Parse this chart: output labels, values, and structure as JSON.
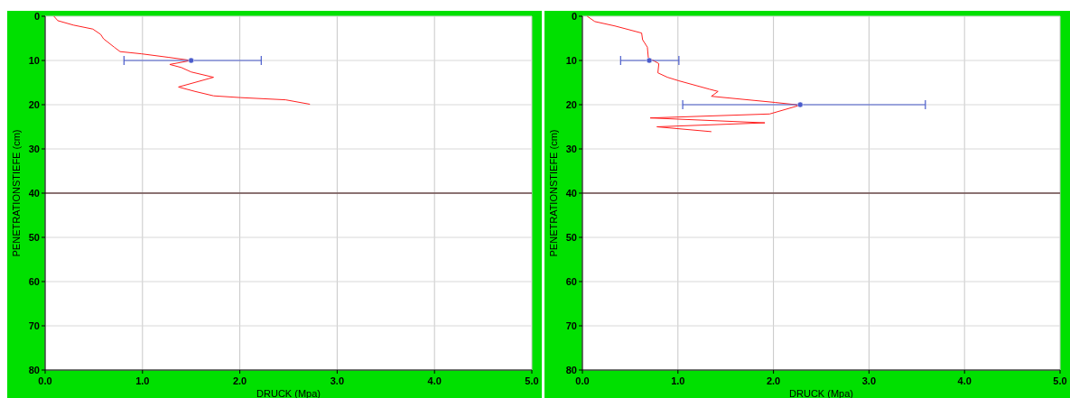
{
  "chart_data": [
    {
      "type": "line",
      "xlabel": "DRUCK  (Mpa)",
      "ylabel": "PENETRATIONSTIEFE (cm)",
      "xlim": [
        0,
        5
      ],
      "ylim": [
        80,
        0
      ],
      "xticks": [
        {
          "value": 0,
          "label": "0.0"
        },
        {
          "value": 1,
          "label": "1.0"
        },
        {
          "value": 2,
          "label": "2.0"
        },
        {
          "value": 3,
          "label": "3.0"
        },
        {
          "value": 4,
          "label": "4.0"
        },
        {
          "value": 5,
          "label": "5.0"
        }
      ],
      "yticks": [
        0,
        10,
        20,
        30,
        40,
        50,
        60,
        70,
        80
      ],
      "grid": true,
      "line_style": "solid",
      "ref_lines": [
        {
          "axis": "y",
          "value": 40,
          "color": "#6b4a4a"
        }
      ],
      "series": [
        {
          "color": "#ff2020",
          "x": [
            0.09,
            0.13,
            0.29,
            0.49,
            0.57,
            0.6,
            0.71,
            0.77,
            0.99,
            1.27,
            1.5,
            1.28,
            1.4,
            1.5,
            1.73,
            1.37,
            1.54,
            1.73,
            2.01,
            2.47,
            2.72
          ],
          "values": [
            0,
            1,
            2,
            2.9,
            4.1,
            5.1,
            7,
            8,
            8.5,
            9.3,
            10,
            10.9,
            11.6,
            12.6,
            13.8,
            16,
            17,
            18,
            18.4,
            18.9,
            19.9
          ]
        },
        {
          "type": "scatter",
          "color": "#4a5ccc",
          "x": [
            1.5
          ],
          "values": [
            10
          ],
          "xerrors": [
            [
              0.81,
              2.22
            ]
          ]
        }
      ]
    },
    {
      "type": "line",
      "xlabel": "DRUCK  (Mpa)",
      "ylabel": "PENETRATIONSTIEFE (cm)",
      "xlim": [
        0,
        5
      ],
      "ylim": [
        80,
        0
      ],
      "xticks": [
        {
          "value": 0,
          "label": "0.0"
        },
        {
          "value": 1,
          "label": "1.0"
        },
        {
          "value": 2,
          "label": "2.0"
        },
        {
          "value": 3,
          "label": "3.0"
        },
        {
          "value": 4,
          "label": "4.0"
        },
        {
          "value": 5,
          "label": "5.0"
        }
      ],
      "yticks": [
        0,
        10,
        20,
        30,
        40,
        50,
        60,
        70,
        80
      ],
      "grid": true,
      "line_style": "solid",
      "ref_lines": [
        {
          "axis": "y",
          "value": 40,
          "color": "#6b4a4a"
        }
      ],
      "series": [
        {
          "color": "#ff2020",
          "x": [
            0.05,
            0.13,
            0.34,
            0.62,
            0.63,
            0.68,
            0.69,
            0.8,
            0.79,
            0.89,
            1.01,
            1.33,
            1.42,
            1.35,
            2.02,
            2.28,
            1.96,
            0.71,
            1.91,
            0.78,
            1.35
          ],
          "values": [
            0,
            1.2,
            2.2,
            3.8,
            5.3,
            7,
            9.4,
            10.7,
            12.8,
            13.8,
            14.6,
            16.5,
            17,
            18.1,
            19.5,
            20.1,
            22.1,
            23,
            24.1,
            25,
            26.1
          ]
        },
        {
          "type": "scatter",
          "color": "#4a5ccc",
          "x": [
            0.7,
            2.28
          ],
          "values": [
            10,
            20
          ],
          "xerrors": [
            [
              0.4,
              1.01
            ],
            [
              1.05,
              3.59
            ]
          ]
        }
      ]
    }
  ]
}
